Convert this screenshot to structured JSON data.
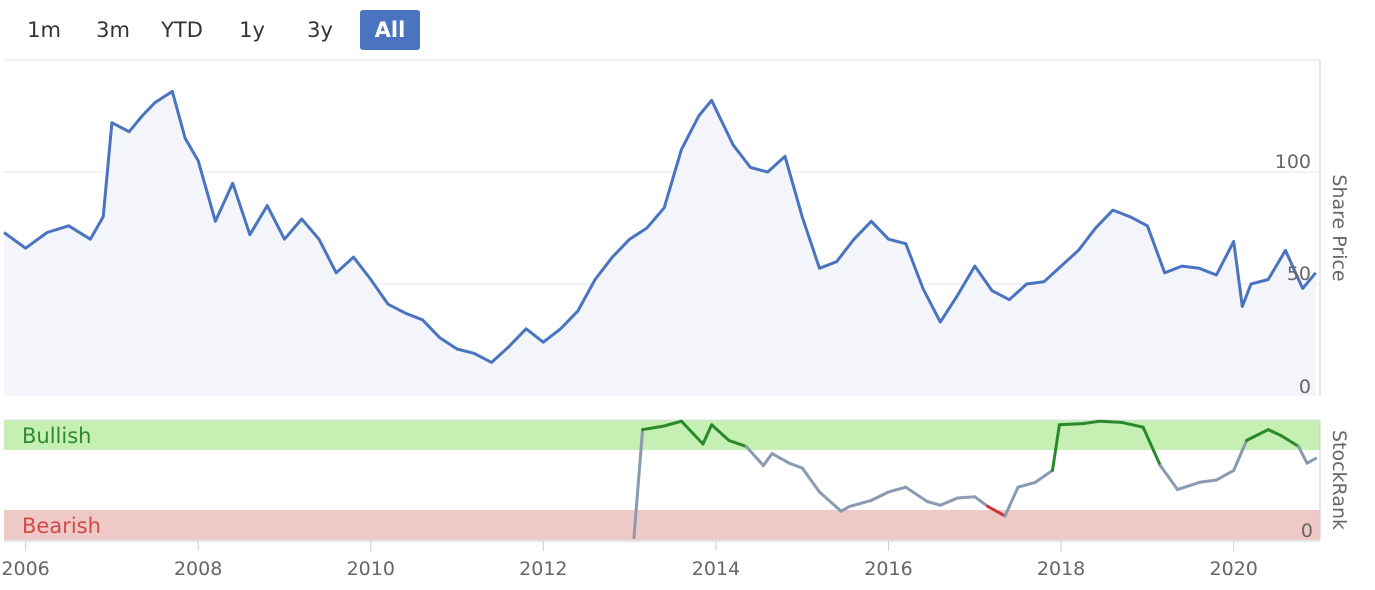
{
  "range_selector": {
    "buttons": [
      "1m",
      "3m",
      "YTD",
      "1y",
      "3y",
      "All"
    ],
    "active": "All",
    "active_color": "#4a74c0"
  },
  "colors": {
    "price_line": "#4a74c0",
    "price_fill": "#f3f5fb",
    "bullish_band": "#c5efb3",
    "bearish_band": "#efc9c5",
    "bullish_text": "#2f8a2f",
    "bearish_text": "#d04a4a",
    "rank_neutral": "#8a9ab0",
    "rank_bullish": "#2a8a2a",
    "rank_bearish": "#cc3333",
    "grid": "#e4e7ee",
    "axis_text": "#666666"
  },
  "chart_data": [
    {
      "type": "line",
      "name": "price",
      "ylabel": "Share Price",
      "y_ticks": [
        0,
        50,
        100
      ],
      "ylim": [
        0,
        150
      ],
      "grid": true,
      "x": [
        2005.75,
        2006.0,
        2006.25,
        2006.5,
        2006.75,
        2006.9,
        2007.0,
        2007.2,
        2007.35,
        2007.5,
        2007.7,
        2007.85,
        2008.0,
        2008.2,
        2008.4,
        2008.6,
        2008.8,
        2009.0,
        2009.2,
        2009.4,
        2009.6,
        2009.8,
        2010.0,
        2010.2,
        2010.4,
        2010.6,
        2010.8,
        2011.0,
        2011.2,
        2011.4,
        2011.6,
        2011.8,
        2012.0,
        2012.2,
        2012.4,
        2012.6,
        2012.8,
        2013.0,
        2013.2,
        2013.4,
        2013.6,
        2013.8,
        2013.95,
        2014.2,
        2014.4,
        2014.6,
        2014.8,
        2015.0,
        2015.2,
        2015.4,
        2015.6,
        2015.8,
        2016.0,
        2016.2,
        2016.4,
        2016.6,
        2016.8,
        2017.0,
        2017.2,
        2017.4,
        2017.6,
        2017.8,
        2018.0,
        2018.2,
        2018.4,
        2018.6,
        2018.8,
        2019.0,
        2019.2,
        2019.4,
        2019.6,
        2019.8,
        2020.0,
        2020.1,
        2020.2,
        2020.4,
        2020.6,
        2020.8,
        2020.95
      ],
      "y": [
        73,
        66,
        73,
        76,
        70,
        80,
        122,
        118,
        125,
        131,
        136,
        115,
        105,
        78,
        95,
        72,
        85,
        70,
        79,
        70,
        55,
        62,
        52,
        41,
        37,
        34,
        26,
        21,
        19,
        15,
        22,
        30,
        24,
        30,
        38,
        52,
        62,
        70,
        75,
        84,
        110,
        125,
        132,
        112,
        102,
        100,
        107,
        80,
        57,
        60,
        70,
        78,
        70,
        68,
        48,
        33,
        45,
        58,
        47,
        43,
        50,
        51,
        58,
        65,
        75,
        83,
        80,
        76,
        55,
        58,
        57,
        54,
        69,
        40,
        50,
        52,
        65,
        48,
        55
      ]
    },
    {
      "type": "line",
      "name": "stockrank",
      "ylabel": "StockRank",
      "y_ticks": [
        0
      ],
      "ylim": [
        0,
        100
      ],
      "bands": [
        {
          "label": "Bullish",
          "from": 75,
          "to": 100
        },
        {
          "label": "Bearish",
          "from": 0,
          "to": 25
        }
      ],
      "x": [
        2013.05,
        2013.15,
        2013.4,
        2013.6,
        2013.85,
        2013.95,
        2014.15,
        2014.35,
        2014.55,
        2014.65,
        2014.85,
        2015.0,
        2015.2,
        2015.45,
        2015.55,
        2015.8,
        2016.0,
        2016.2,
        2016.45,
        2016.6,
        2016.8,
        2017.0,
        2017.15,
        2017.35,
        2017.5,
        2017.7,
        2017.9,
        2017.98,
        2018.25,
        2018.45,
        2018.7,
        2018.95,
        2019.15,
        2019.35,
        2019.6,
        2019.8,
        2020.0,
        2020.15,
        2020.4,
        2020.55,
        2020.75,
        2020.85,
        2020.95
      ],
      "y": [
        2,
        92,
        95,
        99,
        80,
        96,
        83,
        78,
        62,
        72,
        64,
        60,
        40,
        24,
        28,
        33,
        40,
        44,
        32,
        29,
        35,
        36,
        28,
        20,
        44,
        48,
        58,
        96,
        97,
        99,
        98,
        94,
        62,
        42,
        48,
        50,
        58,
        83,
        92,
        87,
        78,
        64,
        68
      ]
    },
    {
      "type": "axis",
      "name": "time_axis",
      "x_ticks": [
        2006,
        2008,
        2010,
        2012,
        2014,
        2016,
        2018,
        2020
      ],
      "xlim": [
        2005.75,
        2021.0
      ]
    }
  ]
}
